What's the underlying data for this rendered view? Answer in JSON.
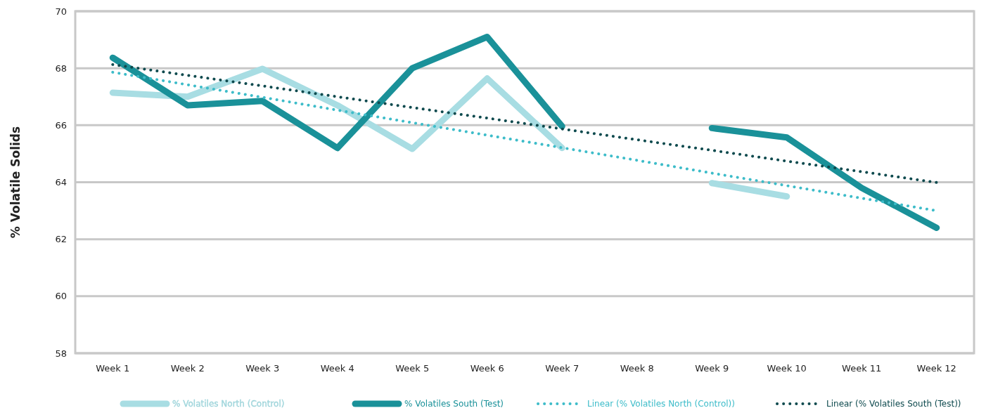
{
  "chart_data": {
    "type": "line",
    "ylabel": "% Volatile Solids",
    "categories": [
      "Week 1",
      "Week 2",
      "Week 3",
      "Week 4",
      "Week 5",
      "Week 6",
      "Week 7",
      "Week 8",
      "Week 9",
      "Week 10",
      "Week 11",
      "Week 12"
    ],
    "series": [
      {
        "name": "% Volatiles North (Control)",
        "color": "#a8dde3",
        "line_style": "solid",
        "values": [
          67.14,
          67.0,
          67.98,
          66.7,
          65.17,
          67.64,
          65.2,
          null,
          63.97,
          63.5,
          null,
          null
        ]
      },
      {
        "name": "% Volatiles South (Test)",
        "color": "#1a9199",
        "line_style": "solid",
        "values": [
          68.37,
          66.7,
          66.85,
          65.2,
          68.0,
          69.1,
          65.96,
          null,
          65.9,
          65.57,
          63.8,
          62.4
        ]
      },
      {
        "name": "Linear (% Volatiles North (Control))",
        "color": "#3dbcc9",
        "line_style": "dotted",
        "values": [
          67.86,
          67.42,
          66.98,
          66.53,
          66.09,
          65.65,
          65.21,
          64.77,
          64.32,
          63.88,
          63.44,
          63.0
        ]
      },
      {
        "name": "Linear (% Volatiles South (Test))",
        "color": "#0e4a4e",
        "line_style": "dotted",
        "values": [
          68.13,
          67.75,
          67.38,
          67.0,
          66.62,
          66.25,
          65.87,
          65.49,
          65.12,
          64.74,
          64.37,
          63.99
        ]
      }
    ],
    "ylim": [
      58,
      70
    ],
    "yticks": [
      58,
      60,
      62,
      64,
      66,
      68,
      70
    ],
    "grid": "y",
    "legend": "bottom",
    "marker": "none"
  }
}
